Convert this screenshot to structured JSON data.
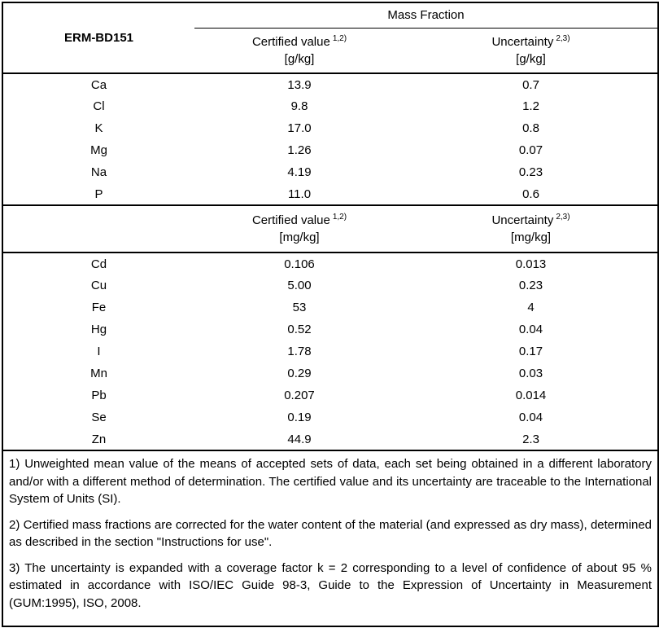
{
  "table": {
    "id_label": "ERM-BD151",
    "mass_fraction_header": "Mass Fraction",
    "sections": [
      {
        "value_header": {
          "label": "Certified value",
          "sup": "1,2)",
          "unit": "[g/kg]"
        },
        "uncertainty_header": {
          "label": "Uncertainty",
          "sup": "2,3)",
          "unit": "[g/kg]"
        },
        "rows": [
          {
            "element": "Ca",
            "value": "13.9",
            "uncertainty": "0.7"
          },
          {
            "element": "Cl",
            "value": "9.8",
            "uncertainty": "1.2"
          },
          {
            "element": "K",
            "value": "17.0",
            "uncertainty": "0.8"
          },
          {
            "element": "Mg",
            "value": "1.26",
            "uncertainty": "0.07"
          },
          {
            "element": "Na",
            "value": "4.19",
            "uncertainty": "0.23"
          },
          {
            "element": "P",
            "value": "11.0",
            "uncertainty": "0.6"
          }
        ]
      },
      {
        "value_header": {
          "label": "Certified value",
          "sup": "1,2)",
          "unit": "[mg/kg]"
        },
        "uncertainty_header": {
          "label": "Uncertainty",
          "sup": "2,3)",
          "unit": "[mg/kg]"
        },
        "rows": [
          {
            "element": "Cd",
            "value": "0.106",
            "uncertainty": "0.013"
          },
          {
            "element": "Cu",
            "value": "5.00",
            "uncertainty": "0.23"
          },
          {
            "element": "Fe",
            "value": "53",
            "uncertainty": "4"
          },
          {
            "element": "Hg",
            "value": "0.52",
            "uncertainty": "0.04"
          },
          {
            "element": "I",
            "value": "1.78",
            "uncertainty": "0.17"
          },
          {
            "element": "Mn",
            "value": "0.29",
            "uncertainty": "0.03"
          },
          {
            "element": "Pb",
            "value": "0.207",
            "uncertainty": "0.014"
          },
          {
            "element": "Se",
            "value": "0.19",
            "uncertainty": "0.04"
          },
          {
            "element": "Zn",
            "value": "44.9",
            "uncertainty": "2.3"
          }
        ]
      }
    ],
    "footnotes": [
      "1) Unweighted mean value of the means of accepted sets of data, each set being obtained in a different laboratory and/or with a different method of determination. The certified value and its uncertainty are traceable to the International System of Units (SI).",
      "2) Certified mass fractions are corrected for the water content of the material (and expressed as dry mass), determined as described in the section \"Instructions for use\".",
      "3) The uncertainty is expanded with a coverage factor k = 2 corresponding to a level of confidence of about 95 % estimated in accordance with ISO/IEC Guide 98-3, Guide to the Expression of Uncertainty in Measurement (GUM:1995), ISO, 2008."
    ]
  }
}
